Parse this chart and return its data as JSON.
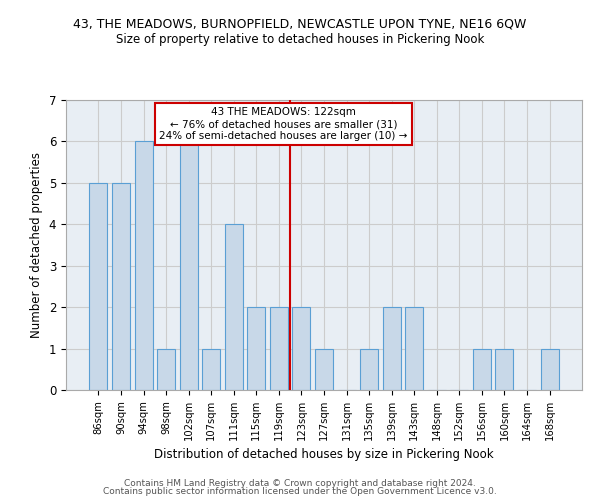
{
  "title": "43, THE MEADOWS, BURNOPFIELD, NEWCASTLE UPON TYNE, NE16 6QW",
  "subtitle": "Size of property relative to detached houses in Pickering Nook",
  "xlabel": "Distribution of detached houses by size in Pickering Nook",
  "ylabel": "Number of detached properties",
  "categories": [
    "86sqm",
    "90sqm",
    "94sqm",
    "98sqm",
    "102sqm",
    "107sqm",
    "111sqm",
    "115sqm",
    "119sqm",
    "123sqm",
    "127sqm",
    "131sqm",
    "135sqm",
    "139sqm",
    "143sqm",
    "148sqm",
    "152sqm",
    "156sqm",
    "160sqm",
    "164sqm",
    "168sqm"
  ],
  "values": [
    5,
    5,
    6,
    1,
    6,
    1,
    4,
    2,
    2,
    2,
    1,
    0,
    1,
    2,
    2,
    0,
    0,
    1,
    1,
    0,
    1
  ],
  "bar_color": "#c8d8e8",
  "bar_edge_color": "#5a9fd4",
  "highlight_index": 9,
  "highlight_line_color": "#cc0000",
  "annotation_text": "43 THE MEADOWS: 122sqm\n← 76% of detached houses are smaller (31)\n24% of semi-detached houses are larger (10) →",
  "annotation_box_color": "#cc0000",
  "ylim": [
    0,
    7
  ],
  "yticks": [
    0,
    1,
    2,
    3,
    4,
    5,
    6,
    7
  ],
  "grid_color": "#cccccc",
  "bg_color": "#e8eef4",
  "footer_line1": "Contains HM Land Registry data © Crown copyright and database right 2024.",
  "footer_line2": "Contains public sector information licensed under the Open Government Licence v3.0."
}
